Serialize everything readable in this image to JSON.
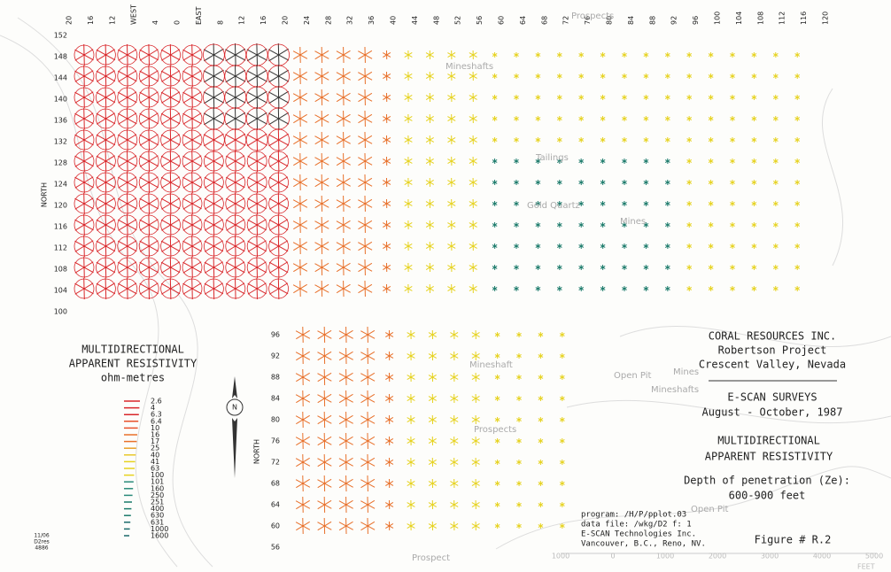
{
  "top_labels": [
    "20",
    "16",
    "12",
    "WEST",
    "4",
    "0",
    "EAST",
    "8",
    "12",
    "16",
    "20",
    "24",
    "28",
    "32",
    "36",
    "40",
    "44",
    "48",
    "52",
    "56",
    "60",
    "64",
    "68",
    "72",
    "76",
    "80",
    "84",
    "88",
    "92",
    "96",
    "100",
    "104",
    "108",
    "112",
    "116",
    "120"
  ],
  "upper_rows": [
    "152",
    "148",
    "144",
    "140",
    "136",
    "132",
    "128",
    "124",
    "120",
    "116",
    "112",
    "108",
    "104",
    "100"
  ],
  "lower_rows": [
    "96",
    "92",
    "88",
    "84",
    "80",
    "76",
    "72",
    "68",
    "64",
    "60",
    "56"
  ],
  "axis_name": "NORTH",
  "legend": {
    "title": [
      "MULTIDIRECTIONAL",
      "APPARENT RESISTIVITY",
      "ohm-metres"
    ],
    "levels": [
      "2.6",
      "4",
      "6.3",
      "6.4",
      "10",
      "16",
      "17",
      "25",
      "40",
      "41",
      "63",
      "100",
      "101",
      "160",
      "250",
      "251",
      "400",
      "630",
      "631",
      "1000",
      "1600"
    ]
  },
  "title_block": {
    "company": "CORAL RESOURCES INC.",
    "project": "Robertson Project",
    "location": "Crescent Valley, Nevada",
    "survey": "E-SCAN SURVEYS",
    "dates": "August - October, 1987",
    "plot_title": [
      "MULTIDIRECTIONAL",
      "APPARENT RESISTIVITY"
    ],
    "depth": "Depth of penetration (Ze):",
    "depth_value": "600-900 feet",
    "program": [
      "program: /H/P/pplot.03",
      "data file: /wkg/D2 f: 1",
      "E-SCAN Technologies Inc.",
      "Vancouver, B.C., Reno, NV."
    ],
    "figure": "Figure # R.2"
  },
  "stamp": [
    "11/06",
    "D2res",
    "4886"
  ],
  "scale": {
    "labels": [
      "1000",
      "0",
      "1000",
      "2000",
      "3000",
      "4000",
      "5000"
    ],
    "unit": "FEET"
  },
  "places": [
    "Prospects",
    "Mineshafts",
    "Tailings",
    "Gold Quartz",
    "Mines",
    "Open Pit",
    "Mineshaft",
    "Prospects",
    "Open Pit",
    "Mineshafts",
    "Mines",
    "Prospect"
  ]
}
